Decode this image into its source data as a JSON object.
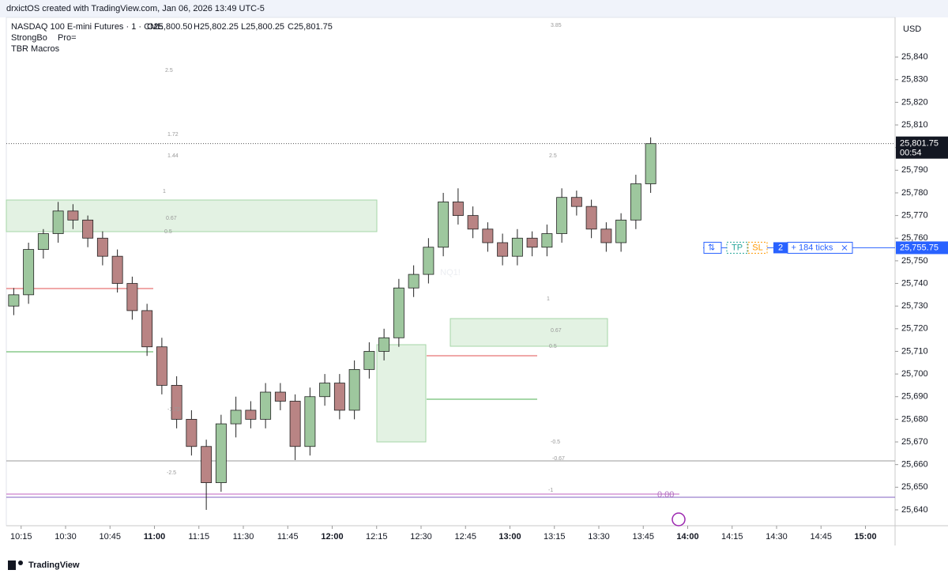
{
  "header": {
    "credit": "drxictOS created with TradingView.com, Jan 06, 2026 13:49 UTC-5"
  },
  "legend": {
    "symbol": "NASDAQ 100 E-mini Futures · 1 · CME",
    "ohlc": [
      "O25,800.50",
      "H25,802.25",
      "L25,800.25",
      "C25,801.75"
    ],
    "indicators": [
      "StrongBo",
      "Pro=",
      "TBR Macros"
    ]
  },
  "currency": "USD",
  "watermark": "NQ1!",
  "brand": "TradingView",
  "fib_labels": [
    "3.85",
    "2.5",
    "1.72",
    "1.44",
    "2.5",
    "1",
    "0.67",
    "0.5",
    "1",
    "0.67",
    "0.5",
    "-0.5",
    "-0.67",
    "-1",
    "-2.5",
    "-1.72"
  ],
  "purple_label": "0.00",
  "last_price": {
    "value": 25801.75,
    "label": "25,801.75",
    "countdown": "00:54"
  },
  "order_line": {
    "value": 25755.75,
    "label": "25,755.75",
    "tp": "TP",
    "sl": "SL",
    "qty": "2",
    "ticks": "+ 184 ticks"
  },
  "chart_data": {
    "type": "candlestick",
    "x": [
      "10:10",
      "10:15",
      "10:20",
      "10:25",
      "10:30",
      "10:35",
      "10:40",
      "10:45",
      "10:50",
      "10:55",
      "11:00",
      "11:05",
      "11:10",
      "11:15",
      "11:20",
      "11:25",
      "11:30",
      "11:35",
      "11:40",
      "11:45",
      "11:50",
      "11:55",
      "12:00",
      "12:05",
      "12:10",
      "12:15",
      "12:20",
      "12:25",
      "12:30",
      "12:35",
      "12:40",
      "12:45",
      "12:50",
      "12:55",
      "13:00",
      "13:05",
      "13:10",
      "13:15",
      "13:20",
      "13:25",
      "13:30",
      "13:35",
      "13:40",
      "13:45"
    ],
    "open": [
      25730,
      25735,
      25755,
      25762,
      25772,
      25768,
      25760,
      25752,
      25740,
      25728,
      25712,
      25695,
      25680,
      25668,
      25652,
      25678,
      25684,
      25680,
      25692,
      25688,
      25668,
      25690,
      25696,
      25684,
      25702,
      25710,
      25716,
      25738,
      25744,
      25756,
      25776,
      25770,
      25764,
      25758,
      25752,
      25760,
      25756,
      25762,
      25778,
      25774,
      25764,
      25758,
      25768,
      25784
    ],
    "high": [
      25738,
      25758,
      25764,
      25776,
      25775,
      25770,
      25763,
      25755,
      25743,
      25731,
      25716,
      25699,
      25684,
      25671,
      25682,
      25690,
      25688,
      25696,
      25696,
      25691,
      25694,
      25700,
      25700,
      25706,
      25714,
      25720,
      25742,
      25748,
      25760,
      25780,
      25782,
      25774,
      25767,
      25762,
      25764,
      25763,
      25766,
      25782,
      25781,
      25777,
      25767,
      25771,
      25788,
      25804.5
    ],
    "low": [
      25726,
      25731,
      25751,
      25758,
      25764,
      25756,
      25748,
      25736,
      25724,
      25708,
      25691,
      25676,
      25664,
      25640,
      25648,
      25672,
      25676,
      25676,
      25684,
      25662,
      25664,
      25686,
      25680,
      25680,
      25698,
      25706,
      25712,
      25734,
      25740,
      25752,
      25766,
      25760,
      25754,
      25748,
      25748,
      25752,
      25752,
      25758,
      25770,
      25760,
      25754,
      25754,
      25764,
      25780
    ],
    "close": [
      25735,
      25755,
      25762,
      25772,
      25768,
      25760,
      25752,
      25740,
      25728,
      25712,
      25695,
      25680,
      25668,
      25652,
      25678,
      25684,
      25680,
      25692,
      25688,
      25668,
      25690,
      25696,
      25684,
      25702,
      25710,
      25716,
      25738,
      25744,
      25756,
      25776,
      25770,
      25764,
      25758,
      25752,
      25760,
      25756,
      25762,
      25778,
      25774,
      25764,
      25758,
      25768,
      25784,
      25801.75
    ],
    "up_color": "#9ec79e",
    "down_color": "#b98484",
    "xlim": [
      "10:10",
      "15:10"
    ],
    "xticks": [
      "10:15",
      "10:30",
      "10:45",
      "11:00",
      "11:15",
      "11:30",
      "11:45",
      "12:00",
      "12:15",
      "12:30",
      "12:45",
      "13:00",
      "13:15",
      "13:30",
      "13:45",
      "14:00",
      "14:15",
      "14:30",
      "14:45",
      "15:00"
    ],
    "ylim": [
      25633,
      25857.5
    ],
    "yticks": [
      {
        "value": 25640,
        "label": "25,640"
      },
      {
        "value": 25650,
        "label": "25,650"
      },
      {
        "value": 25660,
        "label": "25,660"
      },
      {
        "value": 25670,
        "label": "25,670"
      },
      {
        "value": 25680,
        "label": "25,680"
      },
      {
        "value": 25690,
        "label": "25,690"
      },
      {
        "value": 25700,
        "label": "25,700"
      },
      {
        "value": 25710,
        "label": "25,710"
      },
      {
        "value": 25720,
        "label": "25,720"
      },
      {
        "value": 25730,
        "label": "25,730"
      },
      {
        "value": 25740,
        "label": "25,740"
      },
      {
        "value": 25750,
        "label": "25,750"
      },
      {
        "value": 25760,
        "label": "25,760"
      },
      {
        "value": 25770,
        "label": "25,770"
      },
      {
        "value": 25780,
        "label": "25,780"
      },
      {
        "value": 25790,
        "label": "25,790"
      },
      {
        "value": 25800,
        "label": "25,800"
      },
      {
        "value": 25810,
        "label": "25,810"
      },
      {
        "value": 25820,
        "label": "25,820"
      },
      {
        "value": 25830,
        "label": "25,830"
      },
      {
        "value": 25840,
        "label": "25,840"
      }
    ]
  }
}
